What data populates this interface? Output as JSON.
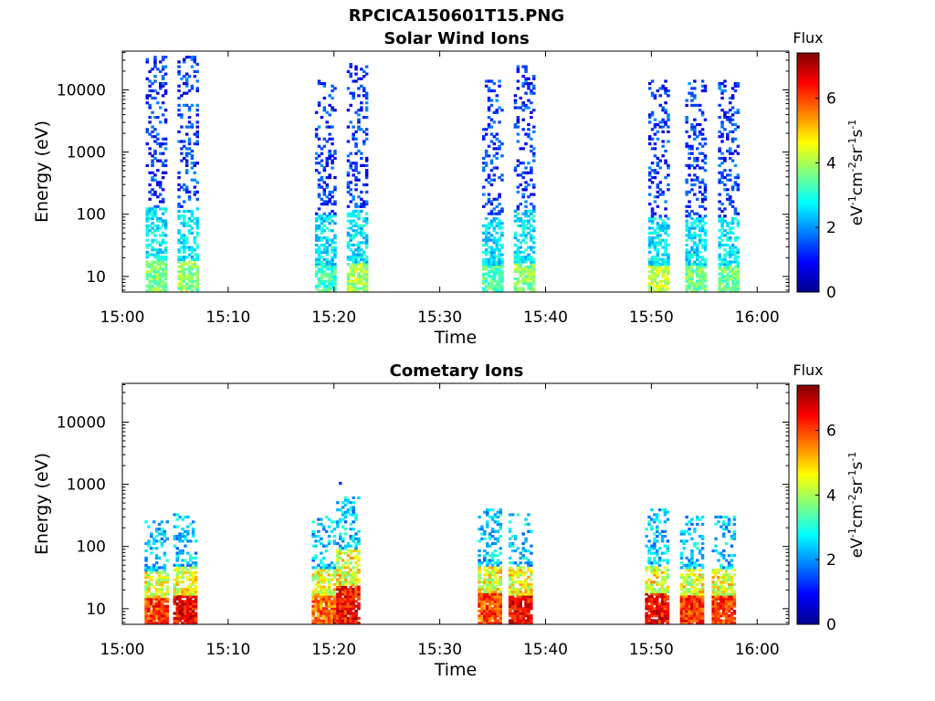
{
  "figure_title": "RPCICA150601T15.PNG",
  "chart_data": [
    {
      "type": "heatmap",
      "title": "Solar Wind Ions",
      "xlabel": "Time",
      "ylabel": "Energy (eV)",
      "xticks": [
        "15:00",
        "15:10",
        "15:20",
        "15:30",
        "15:40",
        "15:50",
        "16:00"
      ],
      "xlim_minutes": [
        0,
        63
      ],
      "yscale": "log",
      "yticks": [
        "10",
        "100",
        "1000",
        "10000"
      ],
      "ylim": [
        5.6,
        42000
      ],
      "colorbar": {
        "title": "Flux",
        "label": "eV-1cm-2sr-1s-1",
        "range": [
          0,
          7.4
        ],
        "ticks": [
          "0",
          "2",
          "4",
          "6"
        ],
        "colormap": "jet"
      },
      "grid": false,
      "bursts": [
        {
          "time_min": 3.1,
          "energy_max": 35000,
          "flux_peak": 4.3
        },
        {
          "time_min": 6.1,
          "energy_max": 35000,
          "flux_peak": 4.4
        },
        {
          "time_min": 19.1,
          "energy_max": 15000,
          "flux_peak": 3.8
        },
        {
          "time_min": 22.1,
          "energy_max": 28000,
          "flux_peak": 4.6
        },
        {
          "time_min": 34.9,
          "energy_max": 14000,
          "flux_peak": 4.0
        },
        {
          "time_min": 37.9,
          "energy_max": 25000,
          "flux_peak": 4.4
        },
        {
          "time_min": 50.6,
          "energy_max": 14000,
          "flux_peak": 4.8
        },
        {
          "time_min": 54.1,
          "energy_max": 14000,
          "flux_peak": 4.2
        },
        {
          "time_min": 57.2,
          "energy_max": 14000,
          "flux_peak": 4.2
        }
      ]
    },
    {
      "type": "heatmap",
      "title": "Cometary Ions",
      "xlabel": "Time",
      "ylabel": "Energy (eV)",
      "xticks": [
        "15:00",
        "15:10",
        "15:20",
        "15:30",
        "15:40",
        "15:50",
        "16:00"
      ],
      "xlim_minutes": [
        0,
        63
      ],
      "yscale": "log",
      "yticks": [
        "10",
        "100",
        "1000",
        "10000"
      ],
      "ylim": [
        5.6,
        42000
      ],
      "colorbar": {
        "title": "Flux",
        "label": "eV-1cm-2sr-1s-1",
        "range": [
          0,
          7.4
        ],
        "ticks": [
          "0",
          "2",
          "4",
          "6"
        ],
        "colormap": "jet"
      },
      "grid": false,
      "bursts": [
        {
          "time_min": 3.2,
          "energy_max": 250,
          "flux_peak": 6.8
        },
        {
          "time_min": 5.9,
          "energy_max": 350,
          "flux_peak": 7.3
        },
        {
          "time_min": 19.0,
          "energy_max": 300,
          "flux_peak": 6.4
        },
        {
          "time_min": 21.3,
          "energy_max": 1300,
          "flux_peak": 7.2
        },
        {
          "time_min": 34.7,
          "energy_max": 400,
          "flux_peak": 6.7
        },
        {
          "time_min": 37.6,
          "energy_max": 350,
          "flux_peak": 7.2
        },
        {
          "time_min": 50.5,
          "energy_max": 400,
          "flux_peak": 7.2
        },
        {
          "time_min": 53.8,
          "energy_max": 300,
          "flux_peak": 6.9
        },
        {
          "time_min": 56.8,
          "energy_max": 300,
          "flux_peak": 6.8
        }
      ]
    }
  ]
}
